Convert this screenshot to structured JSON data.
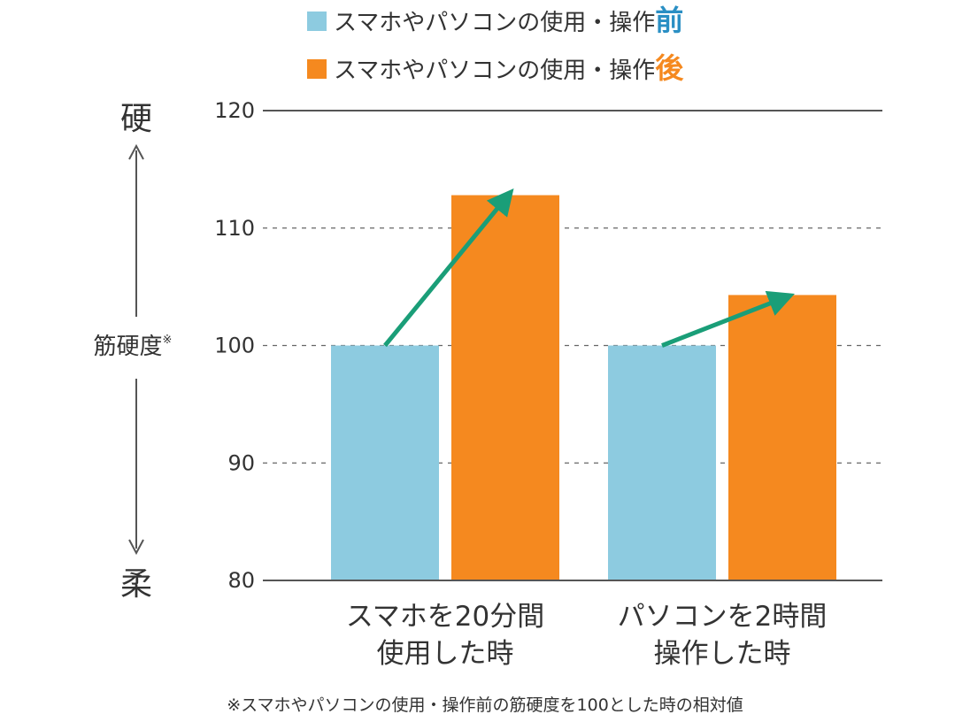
{
  "chart_data": {
    "type": "bar",
    "categories": [
      [
        "スマホを20分間",
        "使用した時"
      ],
      [
        "パソコンを2時間",
        "操作した時"
      ]
    ],
    "series": [
      {
        "name": "スマホやパソコンの使用・操作前",
        "name_prefix": "スマホやパソコンの使用・操作",
        "name_emphasis": "前",
        "color": "#8dcbe0",
        "emphasis_color": "#2a8fc4",
        "values": [
          100,
          100
        ]
      },
      {
        "name": "スマホやパソコンの使用・操作後",
        "name_prefix": "スマホやパソコンの使用・操作",
        "name_emphasis": "後",
        "color": "#f5891f",
        "emphasis_color": "#f5891f",
        "values": [
          112.8,
          104.3
        ]
      }
    ],
    "ylim": [
      80,
      120
    ],
    "yticks": [
      80,
      90,
      100,
      110,
      120
    ],
    "ylabel": "筋硬度",
    "ylabel_mark": "※",
    "y_top_word": "硬",
    "y_bottom_word": "柔",
    "arrow_color": "#1a9e78",
    "grid": "dashed",
    "legend_position": "top",
    "footnote": "※スマホやパソコンの使用・操作前の筋硬度を100とした時の相対値"
  }
}
